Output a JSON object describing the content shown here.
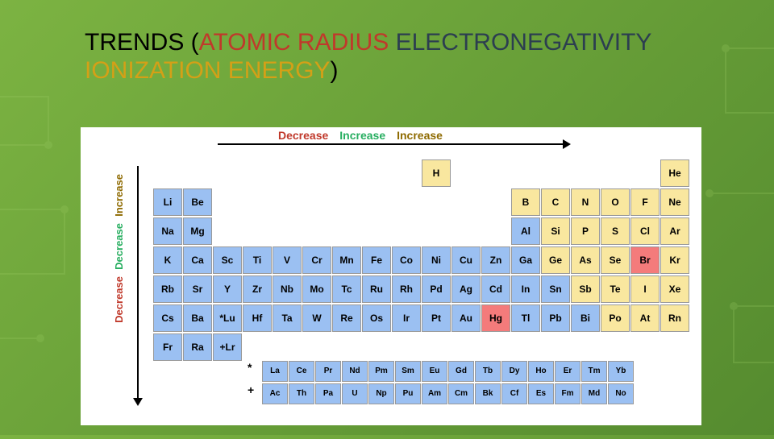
{
  "title": {
    "parts": [
      {
        "text": "TRENDS (",
        "color": "#000000"
      },
      {
        "text": "ATOMIC RADIUS",
        "color": "#c0392b"
      },
      {
        "text": " ",
        "color": "#000000"
      },
      {
        "text": "ELECTRONEGATIVITY",
        "color": "#2c3e50"
      },
      {
        "text": " ",
        "color": "#000000"
      },
      {
        "text": "IONIZATION ENERGY",
        "color": "#d4a017"
      },
      {
        "text": ")",
        "color": "#000000"
      }
    ]
  },
  "horizontal_labels": [
    {
      "text": "Decrease",
      "color": "#c0392b"
    },
    {
      "text": "Increase",
      "color": "#27ae60"
    },
    {
      "text": "Increase",
      "color": "#8e6a00"
    }
  ],
  "vertical_labels": [
    {
      "text": "Decrease",
      "color": "#c0392b"
    },
    {
      "text": "Decrease",
      "color": "#27ae60"
    },
    {
      "text": "Increase",
      "color": "#8e6a00"
    }
  ],
  "colors": {
    "alkali": "#9bc0f2",
    "metalloid": "#f9e79f",
    "liquid": "#f47b7b",
    "empty": "#ffffff"
  },
  "periods": [
    [
      {
        "s": "",
        "c": "gap"
      },
      {
        "s": "",
        "c": "gap"
      },
      {
        "s": "",
        "c": "gap"
      },
      {
        "s": "",
        "c": "gap"
      },
      {
        "s": "",
        "c": "gap"
      },
      {
        "s": "",
        "c": "gap"
      },
      {
        "s": "",
        "c": "gap"
      },
      {
        "s": "",
        "c": "gap"
      },
      {
        "s": "",
        "c": "gap"
      },
      {
        "s": "H",
        "c": "metalloid"
      },
      {
        "s": "",
        "c": "gap"
      },
      {
        "s": "",
        "c": "gap"
      },
      {
        "s": "",
        "c": "gap"
      },
      {
        "s": "",
        "c": "gap"
      },
      {
        "s": "",
        "c": "gap"
      },
      {
        "s": "",
        "c": "gap"
      },
      {
        "s": "",
        "c": "gap"
      },
      {
        "s": "He",
        "c": "metalloid"
      }
    ],
    [
      {
        "s": "Li",
        "c": "alkali"
      },
      {
        "s": "Be",
        "c": "alkali"
      },
      {
        "s": "",
        "c": "gap"
      },
      {
        "s": "",
        "c": "gap"
      },
      {
        "s": "",
        "c": "gap"
      },
      {
        "s": "",
        "c": "gap"
      },
      {
        "s": "",
        "c": "gap"
      },
      {
        "s": "",
        "c": "gap"
      },
      {
        "s": "",
        "c": "gap"
      },
      {
        "s": "",
        "c": "gap"
      },
      {
        "s": "",
        "c": "gap"
      },
      {
        "s": "",
        "c": "gap"
      },
      {
        "s": "B",
        "c": "metalloid"
      },
      {
        "s": "C",
        "c": "metalloid"
      },
      {
        "s": "N",
        "c": "metalloid"
      },
      {
        "s": "O",
        "c": "metalloid"
      },
      {
        "s": "F",
        "c": "metalloid"
      },
      {
        "s": "Ne",
        "c": "metalloid"
      }
    ],
    [
      {
        "s": "Na",
        "c": "alkali"
      },
      {
        "s": "Mg",
        "c": "alkali"
      },
      {
        "s": "",
        "c": "gap"
      },
      {
        "s": "",
        "c": "gap"
      },
      {
        "s": "",
        "c": "gap"
      },
      {
        "s": "",
        "c": "gap"
      },
      {
        "s": "",
        "c": "gap"
      },
      {
        "s": "",
        "c": "gap"
      },
      {
        "s": "",
        "c": "gap"
      },
      {
        "s": "",
        "c": "gap"
      },
      {
        "s": "",
        "c": "gap"
      },
      {
        "s": "",
        "c": "gap"
      },
      {
        "s": "Al",
        "c": "alkali"
      },
      {
        "s": "Si",
        "c": "metalloid"
      },
      {
        "s": "P",
        "c": "metalloid"
      },
      {
        "s": "S",
        "c": "metalloid"
      },
      {
        "s": "Cl",
        "c": "metalloid"
      },
      {
        "s": "Ar",
        "c": "metalloid"
      }
    ],
    [
      {
        "s": "K",
        "c": "alkali"
      },
      {
        "s": "Ca",
        "c": "alkali"
      },
      {
        "s": "Sc",
        "c": "alkali"
      },
      {
        "s": "Ti",
        "c": "alkali"
      },
      {
        "s": "V",
        "c": "alkali"
      },
      {
        "s": "Cr",
        "c": "alkali"
      },
      {
        "s": "Mn",
        "c": "alkali"
      },
      {
        "s": "Fe",
        "c": "alkali"
      },
      {
        "s": "Co",
        "c": "alkali"
      },
      {
        "s": "Ni",
        "c": "alkali"
      },
      {
        "s": "Cu",
        "c": "alkali"
      },
      {
        "s": "Zn",
        "c": "alkali"
      },
      {
        "s": "Ga",
        "c": "alkali"
      },
      {
        "s": "Ge",
        "c": "metalloid"
      },
      {
        "s": "As",
        "c": "metalloid"
      },
      {
        "s": "Se",
        "c": "metalloid"
      },
      {
        "s": "Br",
        "c": "liquid"
      },
      {
        "s": "Kr",
        "c": "metalloid"
      }
    ],
    [
      {
        "s": "Rb",
        "c": "alkali"
      },
      {
        "s": "Sr",
        "c": "alkali"
      },
      {
        "s": "Y",
        "c": "alkali"
      },
      {
        "s": "Zr",
        "c": "alkali"
      },
      {
        "s": "Nb",
        "c": "alkali"
      },
      {
        "s": "Mo",
        "c": "alkali"
      },
      {
        "s": "Tc",
        "c": "alkali"
      },
      {
        "s": "Ru",
        "c": "alkali"
      },
      {
        "s": "Rh",
        "c": "alkali"
      },
      {
        "s": "Pd",
        "c": "alkali"
      },
      {
        "s": "Ag",
        "c": "alkali"
      },
      {
        "s": "Cd",
        "c": "alkali"
      },
      {
        "s": "In",
        "c": "alkali"
      },
      {
        "s": "Sn",
        "c": "alkali"
      },
      {
        "s": "Sb",
        "c": "metalloid"
      },
      {
        "s": "Te",
        "c": "metalloid"
      },
      {
        "s": "I",
        "c": "metalloid"
      },
      {
        "s": "Xe",
        "c": "metalloid"
      }
    ],
    [
      {
        "s": "Cs",
        "c": "alkali"
      },
      {
        "s": "Ba",
        "c": "alkali"
      },
      {
        "s": "*Lu",
        "c": "alkali"
      },
      {
        "s": "Hf",
        "c": "alkali"
      },
      {
        "s": "Ta",
        "c": "alkali"
      },
      {
        "s": "W",
        "c": "alkali"
      },
      {
        "s": "Re",
        "c": "alkali"
      },
      {
        "s": "Os",
        "c": "alkali"
      },
      {
        "s": "Ir",
        "c": "alkali"
      },
      {
        "s": "Pt",
        "c": "alkali"
      },
      {
        "s": "Au",
        "c": "alkali"
      },
      {
        "s": "Hg",
        "c": "liquid"
      },
      {
        "s": "Tl",
        "c": "alkali"
      },
      {
        "s": "Pb",
        "c": "alkali"
      },
      {
        "s": "Bi",
        "c": "alkali"
      },
      {
        "s": "Po",
        "c": "metalloid"
      },
      {
        "s": "At",
        "c": "metalloid"
      },
      {
        "s": "Rn",
        "c": "metalloid"
      }
    ],
    [
      {
        "s": "Fr",
        "c": "alkali"
      },
      {
        "s": "Ra",
        "c": "alkali"
      },
      {
        "s": "+Lr",
        "c": "alkali"
      },
      {
        "s": "",
        "c": "gap"
      },
      {
        "s": "",
        "c": "gap"
      },
      {
        "s": "",
        "c": "gap"
      },
      {
        "s": "",
        "c": "gap"
      },
      {
        "s": "",
        "c": "gap"
      },
      {
        "s": "",
        "c": "gap"
      },
      {
        "s": "",
        "c": "gap"
      },
      {
        "s": "",
        "c": "gap"
      },
      {
        "s": "",
        "c": "gap"
      },
      {
        "s": "",
        "c": "gap"
      },
      {
        "s": "",
        "c": "gap"
      },
      {
        "s": "",
        "c": "gap"
      },
      {
        "s": "",
        "c": "gap"
      },
      {
        "s": "",
        "c": "gap"
      },
      {
        "s": "",
        "c": "gap"
      }
    ]
  ],
  "fblock": [
    [
      "La",
      "Ce",
      "Pr",
      "Nd",
      "Pm",
      "Sm",
      "Eu",
      "Gd",
      "Tb",
      "Dy",
      "Ho",
      "Er",
      "Tm",
      "Yb"
    ],
    [
      "Ac",
      "Th",
      "Pa",
      "U",
      "Np",
      "Pu",
      "Am",
      "Cm",
      "Bk",
      "Cf",
      "Es",
      "Fm",
      "Md",
      "No"
    ]
  ],
  "fblock_markers": [
    "*",
    "+"
  ]
}
